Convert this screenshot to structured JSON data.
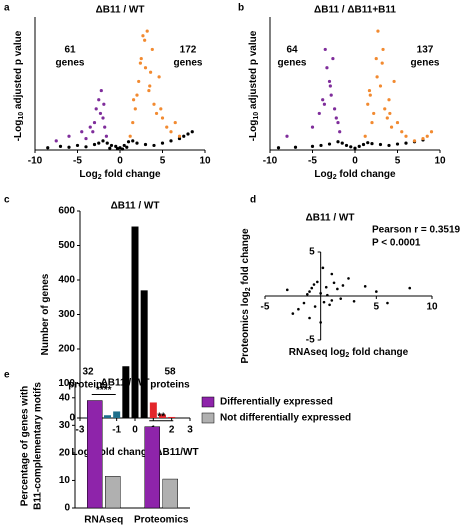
{
  "chart_data": [
    {
      "type": "scatter",
      "panel": "a",
      "title": "ΔB11 / WT",
      "xlabel": [
        "Log",
        "2",
        " fold change"
      ],
      "ylabel": [
        "-Log",
        "10",
        " adjusted p value"
      ],
      "xlim": [
        -10,
        10
      ],
      "xticks": [
        -10,
        -5,
        0,
        5,
        10
      ],
      "ylim": [
        0,
        28
      ],
      "annotations": [
        {
          "lines": [
            "61",
            "genes"
          ],
          "color": "#7f2d9b"
        },
        {
          "lines": [
            "172",
            "genes"
          ],
          "color": "#f28a30"
        }
      ],
      "series": [
        {
          "color": "#000000",
          "x": [
            -8.5,
            -7,
            -6,
            -5,
            -4,
            -3,
            -2.5,
            -2,
            -1.5,
            -1,
            -0.5,
            0,
            0.5,
            1,
            1.5,
            2,
            3,
            4,
            5,
            6,
            7,
            7.5,
            8,
            8.5,
            -1.2,
            0.8,
            -0.3,
            0.3
          ],
          "y": [
            0.5,
            0.8,
            0.6,
            1,
            0.7,
            1.2,
            1.5,
            2,
            1.5,
            1,
            0.8,
            0.5,
            1,
            1.8,
            2,
            1.5,
            1.2,
            1,
            1.5,
            2,
            2.5,
            3,
            3.5,
            4,
            0.4,
            0.6,
            0.3,
            0.2
          ]
        },
        {
          "color": "#7f2d9b",
          "x": [
            -7.5,
            -6,
            -4.5,
            -4,
            -3.5,
            -3,
            -2.8,
            -2.5,
            -2.3,
            -2,
            -1.8,
            -1.6,
            -2.2,
            -3.2,
            -1.9
          ],
          "y": [
            2,
            3,
            4,
            2.5,
            5,
            6,
            9,
            11,
            8,
            7,
            5,
            3,
            13,
            4,
            10
          ]
        },
        {
          "color": "#f28a30",
          "x": [
            1.2,
            1.5,
            1.8,
            2,
            2.2,
            2.5,
            2.7,
            3,
            3.2,
            3.5,
            3.8,
            4,
            4.3,
            4.6,
            5,
            5.5,
            6,
            6.5,
            7,
            1.6,
            2.4,
            3.4,
            4.8,
            2.9,
            3.6
          ],
          "y": [
            3,
            6,
            9,
            12,
            15,
            20,
            25,
            18,
            26,
            14,
            22,
            10,
            8,
            16,
            7,
            5,
            4,
            6,
            3,
            11,
            19,
            13,
            9,
            24,
            17
          ]
        }
      ]
    },
    {
      "type": "scatter",
      "panel": "b",
      "title": "ΔB11 / ΔB11+B11",
      "xlabel": [
        "Log",
        "2",
        " fold change"
      ],
      "ylabel": [
        "-Log",
        "10",
        " adjusted p value"
      ],
      "xlim": [
        -10,
        10
      ],
      "xticks": [
        -10,
        -5,
        0,
        5,
        10
      ],
      "ylim": [
        0,
        28
      ],
      "annotations": [
        {
          "lines": [
            "64",
            "genes"
          ],
          "color": "#7f2d9b"
        },
        {
          "lines": [
            "137",
            "genes"
          ],
          "color": "#f28a30"
        }
      ],
      "series": [
        {
          "color": "#000000",
          "x": [
            -9,
            -7,
            -5,
            -4,
            -3,
            -2,
            -1.5,
            -1,
            -0.5,
            0,
            0.5,
            1,
            1.5,
            2,
            3,
            4,
            5,
            6,
            7,
            8
          ],
          "y": [
            0.5,
            0.6,
            0.8,
            1,
            1.3,
            1.8,
            1.5,
            1,
            0.7,
            0.4,
            0.8,
            1.2,
            1.6,
            1.4,
            1.2,
            1,
            1.3,
            1.5,
            1.8,
            2.2
          ]
        },
        {
          "color": "#7f2d9b",
          "x": [
            -8,
            -5,
            -4.2,
            -3.8,
            -3.5,
            -3.3,
            -3,
            -2.8,
            -2.6,
            -2.4,
            -2.2,
            -2,
            -1.8,
            -3.6,
            -2.9
          ],
          "y": [
            3,
            5,
            8,
            11,
            22,
            18,
            15,
            12,
            20,
            9,
            7,
            6,
            4,
            10,
            14
          ]
        },
        {
          "color": "#f28a30",
          "x": [
            1.2,
            1.5,
            1.8,
            2,
            2.2,
            2.5,
            2.7,
            3,
            3.2,
            3.5,
            3.8,
            4,
            4.3,
            4.6,
            5,
            5.5,
            6,
            7,
            8,
            8.5,
            9,
            2.6,
            3.3,
            1.7,
            4.1
          ],
          "y": [
            3,
            10,
            12,
            6,
            8,
            20,
            26,
            14,
            19,
            9,
            7,
            11,
            5,
            15,
            6,
            4,
            3,
            2,
            2.5,
            3,
            4,
            16,
            22,
            13,
            8
          ]
        }
      ]
    },
    {
      "type": "bar",
      "panel": "c",
      "title": "ΔB11 / WT",
      "xlabel": [
        "Log",
        "2",
        " fold change ΔB11/WT"
      ],
      "ylabel": [
        "Number of genes"
      ],
      "x": [
        -2.5,
        -2,
        -1.5,
        -1,
        -0.5,
        0,
        0.5,
        1,
        1.5,
        2
      ],
      "values": [
        2,
        3,
        8,
        19,
        150,
        555,
        370,
        45,
        10,
        3
      ],
      "colors": [
        "#1f6f8b",
        "#1f6f8b",
        "#1f6f8b",
        "#1f6f8b",
        "#000000",
        "#000000",
        "#000000",
        "#e3262b",
        "#e3262b",
        "#e3262b"
      ],
      "xlim": [
        -3,
        3
      ],
      "xticks": [
        -3,
        -2,
        -1,
        0,
        1,
        2,
        3
      ],
      "ylim": [
        0,
        600
      ],
      "yticks": [
        0,
        100,
        200,
        300,
        400,
        500,
        600
      ],
      "annotations": [
        {
          "lines": [
            "32",
            "proteins"
          ],
          "color": "#1f6f8b"
        },
        {
          "lines": [
            "58",
            "proteins"
          ],
          "color": "#e3262b"
        }
      ]
    },
    {
      "type": "scatter",
      "panel": "d",
      "title": "ΔB11 / WT",
      "axes_cross_zero": true,
      "xlabel": [
        "RNAseq log",
        "2",
        " fold change"
      ],
      "ylabel": [
        "Proteomics log",
        "2",
        " fold change"
      ],
      "xlim": [
        -5,
        10
      ],
      "xticks": [
        -5,
        5,
        10
      ],
      "ylim": [
        -5,
        5
      ],
      "yticks": [
        -5,
        5
      ],
      "annotations": [
        {
          "lines": [
            "Pearson r = 0.3519",
            "P < 0.0001"
          ],
          "color": "#000000"
        }
      ],
      "series": [
        {
          "color": "#000000",
          "x": [
            -1.5,
            -1,
            -0.5,
            0,
            0.5,
            1,
            1.5,
            -2,
            2,
            -0.8,
            0.3,
            0.8,
            -1.2,
            1.2,
            -0.3,
            0.6,
            -2.5,
            2.5,
            3,
            -3,
            4,
            5,
            6,
            8,
            1,
            -1,
            0,
            0.2,
            -0.6,
            1.8
          ],
          "y": [
            -0.8,
            0.5,
            -1.2,
            0.3,
            1,
            -0.5,
            0.8,
            -1.5,
            1.2,
            0.9,
            -0.7,
            -1,
            0.2,
            1.5,
            1.6,
            0.1,
            -2,
            2,
            -0.6,
            0.7,
            1.1,
            0.5,
            -0.8,
            0.9,
            2.5,
            -2.5,
            -3,
            3.2,
            1.3,
            -0.3
          ]
        }
      ]
    },
    {
      "type": "bar",
      "panel": "e",
      "title": "ΔB11 / WT",
      "ylabel": [
        "Percentage of genes with",
        "B11-complementary motifs"
      ],
      "categories": [
        "RNAseq",
        "Proteomics"
      ],
      "series": [
        {
          "name": "Differentially expressed",
          "color": "#8e24aa",
          "values": [
            39,
            29.5
          ]
        },
        {
          "name": "Not differentially expressed",
          "color": "#b0b0b0",
          "values": [
            11.5,
            10.5
          ]
        }
      ],
      "significance": [
        "****",
        "**"
      ],
      "ylim": [
        0,
        45
      ],
      "yticks": [
        0,
        10,
        20,
        30,
        40
      ]
    }
  ]
}
